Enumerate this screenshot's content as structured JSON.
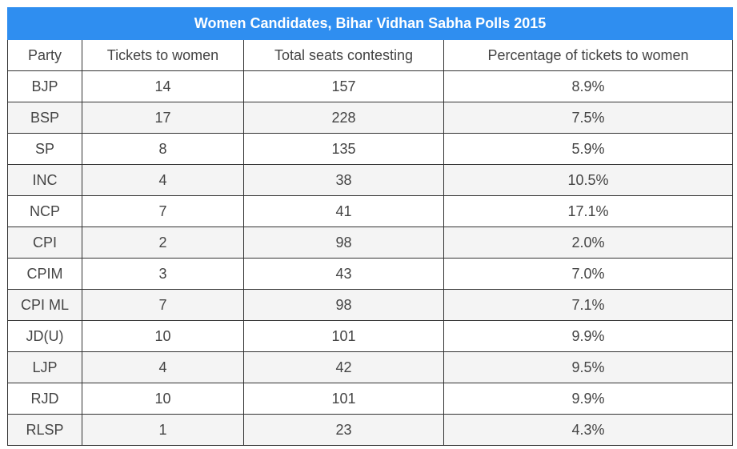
{
  "chart_data": {
    "type": "table",
    "title": "Women Candidates, Bihar Vidhan Sabha Polls 2015",
    "columns": [
      "Party",
      "Tickets to women",
      "Total seats contesting",
      "Percentage of tickets to women"
    ],
    "rows": [
      [
        "BJP",
        "14",
        "157",
        "8.9%"
      ],
      [
        "BSP",
        "17",
        "228",
        "7.5%"
      ],
      [
        "SP",
        "8",
        "135",
        "5.9%"
      ],
      [
        "INC",
        "4",
        "38",
        "10.5%"
      ],
      [
        "NCP",
        "7",
        "41",
        "17.1%"
      ],
      [
        "CPI",
        "2",
        "98",
        "2.0%"
      ],
      [
        "CPIM",
        "3",
        "43",
        "7.0%"
      ],
      [
        "CPI ML",
        "7",
        "98",
        "7.1%"
      ],
      [
        "JD(U)",
        "10",
        "101",
        "9.9%"
      ],
      [
        "LJP",
        "4",
        "42",
        "9.5%"
      ],
      [
        "RJD",
        "10",
        "101",
        "9.9%"
      ],
      [
        "RLSP",
        "1",
        "23",
        "4.3%"
      ]
    ]
  },
  "colors": {
    "title_bg": "#2f8ef0",
    "title_text": "#ffffff",
    "border": "#333333",
    "row_alt": "#f4f4f4",
    "text": "#444444"
  }
}
